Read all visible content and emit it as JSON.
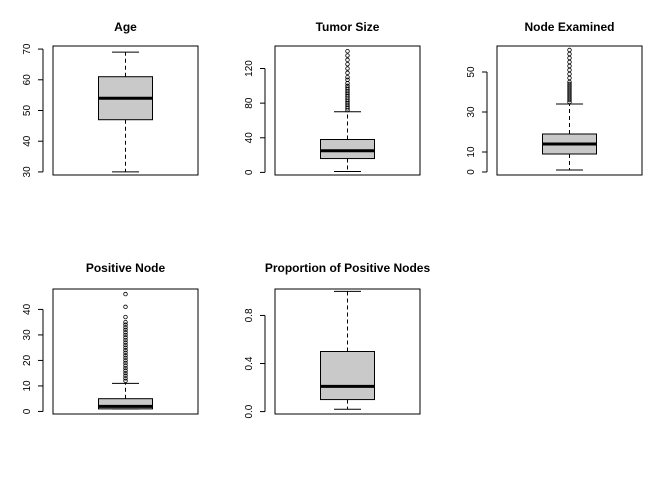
{
  "chart_data": [
    {
      "type": "boxplot",
      "title": "Age",
      "ylim": [
        29,
        71
      ],
      "ticks": [
        30,
        40,
        50,
        60,
        70
      ],
      "tick_labels": [
        "30",
        "40",
        "50",
        "60",
        "70"
      ],
      "box": {
        "whisker_low": 30,
        "q1": 47,
        "median": 54,
        "q3": 61,
        "whisker_high": 69
      },
      "outliers": []
    },
    {
      "type": "boxplot",
      "title": "Tumor Size",
      "ylim": [
        -3,
        146
      ],
      "ticks": [
        0,
        40,
        80,
        120
      ],
      "tick_labels": [
        "0",
        "40",
        "80",
        "120"
      ],
      "box": {
        "whisker_low": 1,
        "q1": 16,
        "median": 25,
        "q3": 38,
        "whisker_high": 70
      },
      "outliers": [
        72,
        74,
        76,
        78,
        80,
        82,
        84,
        86,
        88,
        90,
        92,
        94,
        96,
        98,
        100,
        103,
        107,
        110,
        115,
        120,
        125,
        130,
        135,
        140
      ]
    },
    {
      "type": "boxplot",
      "title": "Node Examined",
      "ylim": [
        -1.5,
        63
      ],
      "ticks": [
        0,
        10,
        30,
        50
      ],
      "tick_labels": [
        "0",
        "10",
        "30",
        "50"
      ],
      "box": {
        "whisker_low": 1,
        "q1": 9,
        "median": 14,
        "q3": 19,
        "whisker_high": 34
      },
      "outliers": [
        35,
        36,
        37,
        38,
        39,
        40,
        41,
        42,
        43,
        44,
        45,
        47,
        49,
        51,
        53,
        55,
        57,
        59,
        61
      ]
    },
    {
      "type": "boxplot",
      "title": "Positive Node",
      "ylim": [
        -1,
        48
      ],
      "ticks": [
        0,
        10,
        20,
        30,
        40
      ],
      "tick_labels": [
        "0",
        "10",
        "20",
        "30",
        "40"
      ],
      "box": {
        "whisker_low": 1,
        "q1": 1,
        "median": 2,
        "q3": 5,
        "whisker_high": 11
      },
      "outliers": [
        12,
        13,
        14,
        15,
        16,
        17,
        18,
        19,
        20,
        21,
        22,
        23,
        24,
        25,
        26,
        27,
        28,
        29,
        30,
        31,
        32,
        33,
        34,
        35,
        37,
        41,
        46
      ]
    },
    {
      "type": "boxplot",
      "title": "Proportion of Positive Nodes",
      "ylim": [
        -0.02,
        1.02
      ],
      "ticks": [
        0.0,
        0.4,
        0.8
      ],
      "tick_labels": [
        "0.0",
        "0.4",
        "0.8"
      ],
      "box": {
        "whisker_low": 0.02,
        "q1": 0.1,
        "median": 0.21,
        "q3": 0.5,
        "whisker_high": 1.0
      },
      "outliers": []
    }
  ]
}
